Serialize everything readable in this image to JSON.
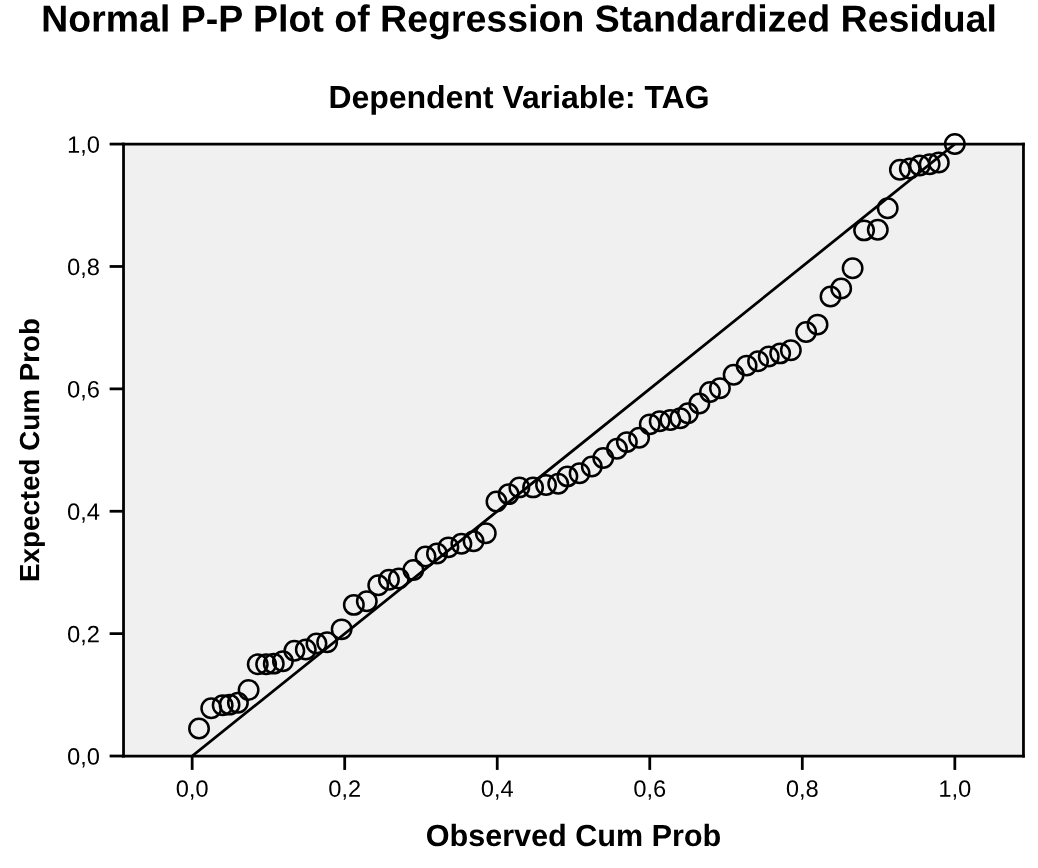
{
  "chart_data": {
    "type": "scatter",
    "title": "Normal P-P Plot of Regression Standardized Residual",
    "subtitle": "Dependent Variable: TAG",
    "xlabel": "Observed Cum Prob",
    "ylabel": "Expected Cum Prob",
    "series": [
      {
        "color": "#000000",
        "marker": "circle",
        "x": [
          0.009,
          0.025,
          0.04,
          0.049,
          0.06,
          0.074,
          0.086,
          0.097,
          0.107,
          0.119,
          0.134,
          0.149,
          0.163,
          0.177,
          0.196,
          0.212,
          0.229,
          0.244,
          0.258,
          0.271,
          0.29,
          0.306,
          0.321,
          0.336,
          0.353,
          0.369,
          0.385,
          0.399,
          0.415,
          0.429,
          0.447,
          0.464,
          0.48,
          0.492,
          0.508,
          0.524,
          0.539,
          0.557,
          0.57,
          0.586,
          0.6,
          0.613,
          0.627,
          0.64,
          0.65,
          0.665,
          0.679,
          0.692,
          0.71,
          0.727,
          0.742,
          0.756,
          0.771,
          0.785,
          0.805,
          0.82,
          0.837,
          0.851,
          0.866,
          0.881,
          0.899,
          0.912,
          0.928,
          0.941,
          0.954,
          0.967,
          0.979,
          1.0
        ],
        "values": [
          0.045,
          0.078,
          0.083,
          0.084,
          0.087,
          0.108,
          0.15,
          0.15,
          0.151,
          0.155,
          0.172,
          0.174,
          0.184,
          0.186,
          0.207,
          0.247,
          0.253,
          0.279,
          0.288,
          0.29,
          0.304,
          0.326,
          0.331,
          0.341,
          0.347,
          0.351,
          0.364,
          0.416,
          0.428,
          0.439,
          0.439,
          0.443,
          0.445,
          0.457,
          0.462,
          0.473,
          0.487,
          0.502,
          0.513,
          0.52,
          0.542,
          0.547,
          0.549,
          0.552,
          0.56,
          0.576,
          0.595,
          0.601,
          0.623,
          0.638,
          0.645,
          0.653,
          0.658,
          0.663,
          0.693,
          0.705,
          0.751,
          0.764,
          0.797,
          0.859,
          0.86,
          0.895,
          0.958,
          0.96,
          0.965,
          0.967,
          0.97,
          1.0
        ]
      },
      {
        "type": "line",
        "color": "#000000",
        "x": [
          0,
          1
        ],
        "values": [
          0,
          1
        ]
      }
    ],
    "xlim": [
      -0.09,
      1.09
    ],
    "ylim": [
      0,
      1
    ],
    "xticks": [
      {
        "value": 0,
        "label": "0,0"
      },
      {
        "value": 0.2,
        "label": "0,2"
      },
      {
        "value": 0.4,
        "label": "0,4"
      },
      {
        "value": 0.6,
        "label": "0,6"
      },
      {
        "value": 0.8,
        "label": "0,8"
      },
      {
        "value": 1,
        "label": "1,0"
      }
    ],
    "yticks": [
      {
        "value": 0,
        "label": "0,0"
      },
      {
        "value": 0.2,
        "label": "0,2"
      },
      {
        "value": 0.4,
        "label": "0,4"
      },
      {
        "value": 0.6,
        "label": "0,6"
      },
      {
        "value": 0.8,
        "label": "0,8"
      },
      {
        "value": 1,
        "label": "1,0"
      }
    ],
    "grid": false,
    "legend": false
  }
}
